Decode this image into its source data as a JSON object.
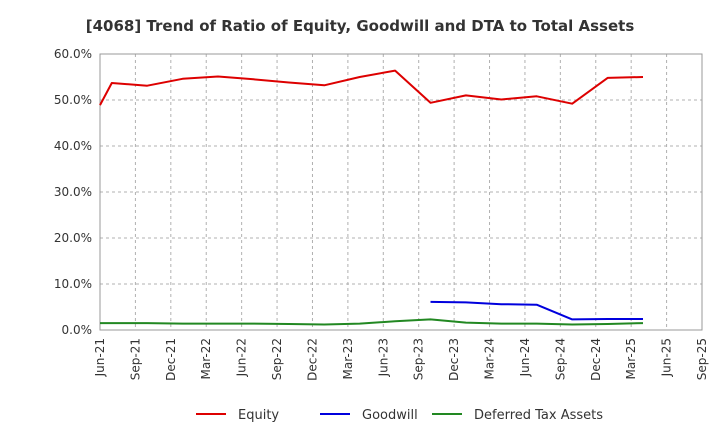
{
  "chart_data": {
    "type": "line",
    "title": "[4068]  Trend of Ratio of Equity, Goodwill and DTA to Total Assets",
    "xlabel": "",
    "ylabel": "",
    "x_tick_labels": [
      "Jun-21",
      "Sep-21",
      "Dec-21",
      "Mar-22",
      "Jun-22",
      "Sep-22",
      "Dec-22",
      "Mar-23",
      "Jun-23",
      "Sep-23",
      "Dec-23",
      "Mar-24",
      "Jun-24",
      "Sep-24",
      "Dec-24",
      "Mar-25",
      "Jun-25",
      "Sep-25"
    ],
    "y_tick_labels": [
      "0.0%",
      "10.0%",
      "20.0%",
      "30.0%",
      "40.0%",
      "50.0%",
      "60.0%"
    ],
    "ylim": [
      0,
      60
    ],
    "grid": true,
    "legend_position": "bottom",
    "series": [
      {
        "name": "Equity",
        "color": "#dd0000",
        "points": [
          {
            "x": "Jun-21",
            "y": 48.9
          },
          {
            "x": "Jul-21",
            "y": 53.7
          },
          {
            "x": "Oct-21",
            "y": 53.1
          },
          {
            "x": "Jan-22",
            "y": 54.6
          },
          {
            "x": "Apr-22",
            "y": 55.1
          },
          {
            "x": "Jul-22",
            "y": 54.5
          },
          {
            "x": "Oct-22",
            "y": 53.8
          },
          {
            "x": "Jan-23",
            "y": 53.2
          },
          {
            "x": "Apr-23",
            "y": 55.0
          },
          {
            "x": "Jul-23",
            "y": 56.4
          },
          {
            "x": "Oct-23",
            "y": 49.4
          },
          {
            "x": "Jan-24",
            "y": 51.0
          },
          {
            "x": "Apr-24",
            "y": 50.1
          },
          {
            "x": "Jul-24",
            "y": 50.8
          },
          {
            "x": "Oct-24",
            "y": 49.2
          },
          {
            "x": "Jan-25",
            "y": 54.8
          },
          {
            "x": "Apr-25",
            "y": 55.0
          }
        ]
      },
      {
        "name": "Goodwill",
        "color": "#0000dd",
        "points": [
          {
            "x": "Oct-23",
            "y": 6.1
          },
          {
            "x": "Jan-24",
            "y": 6.0
          },
          {
            "x": "Apr-24",
            "y": 5.6
          },
          {
            "x": "Jul-24",
            "y": 5.5
          },
          {
            "x": "Oct-24",
            "y": 2.3
          },
          {
            "x": "Jan-25",
            "y": 2.4
          },
          {
            "x": "Apr-25",
            "y": 2.4
          }
        ]
      },
      {
        "name": "Deferred Tax Assets",
        "color": "#228822",
        "points": [
          {
            "x": "Jun-21",
            "y": 1.5
          },
          {
            "x": "Jul-21",
            "y": 1.5
          },
          {
            "x": "Oct-21",
            "y": 1.5
          },
          {
            "x": "Jan-22",
            "y": 1.4
          },
          {
            "x": "Apr-22",
            "y": 1.4
          },
          {
            "x": "Jul-22",
            "y": 1.4
          },
          {
            "x": "Oct-22",
            "y": 1.3
          },
          {
            "x": "Jan-23",
            "y": 1.2
          },
          {
            "x": "Apr-23",
            "y": 1.4
          },
          {
            "x": "Jul-23",
            "y": 1.9
          },
          {
            "x": "Oct-23",
            "y": 2.3
          },
          {
            "x": "Jan-24",
            "y": 1.6
          },
          {
            "x": "Apr-24",
            "y": 1.4
          },
          {
            "x": "Jul-24",
            "y": 1.4
          },
          {
            "x": "Oct-24",
            "y": 1.2
          },
          {
            "x": "Jan-25",
            "y": 1.3
          },
          {
            "x": "Apr-25",
            "y": 1.5
          }
        ]
      }
    ]
  }
}
